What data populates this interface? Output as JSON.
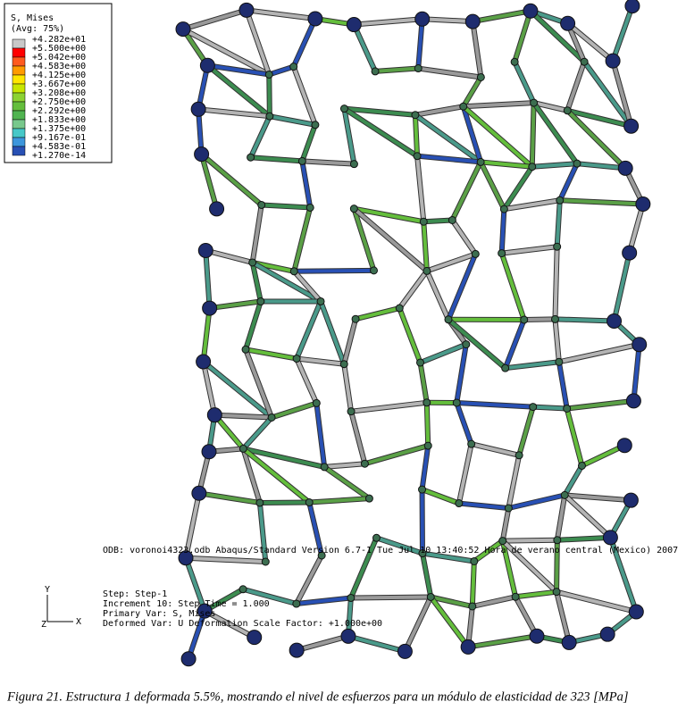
{
  "legend": {
    "title": "S, Mises",
    "subtitle": "(Avg: 75%)",
    "labels": [
      "+4.282e+01",
      "+5.500e+00",
      "+5.042e+00",
      "+4.583e+00",
      "+4.125e+00",
      "+3.667e+00",
      "+3.208e+00",
      "+2.750e+00",
      "+2.292e+00",
      "+1.833e+00",
      "+1.375e+00",
      "+9.167e-01",
      "+4.583e-01",
      "+1.270e-14"
    ],
    "colors": [
      "#c8c8c8",
      "#ff0000",
      "#ff5a1e",
      "#ff9b00",
      "#ffe600",
      "#c8e600",
      "#8cd232",
      "#64be3c",
      "#50b450",
      "#78c88c",
      "#46c8c8",
      "#3c96dc",
      "#2850b4"
    ]
  },
  "info": {
    "odb": "ODB: voronoi4323.odb    Abaqus/Standard Version 6.7-1    Tue Jul 10 13:40:52 Hora de verano central (Mexico) 2007",
    "step": "Step: Step-1",
    "increment": "Increment     10: Step Time =     1.000",
    "primary": "Primary Var: S, Mises",
    "deformed": "Deformed Var: U   Deformation Scale Factor: +1.000e+00"
  },
  "triad": {
    "y": "Y",
    "x": "X",
    "z": "Z"
  },
  "caption": "Figura 21. Estructura 1 deformada 5.5%, mostrando el nivel de esfuerzos para un módulo de elasticidad de 323 [MPa]"
}
